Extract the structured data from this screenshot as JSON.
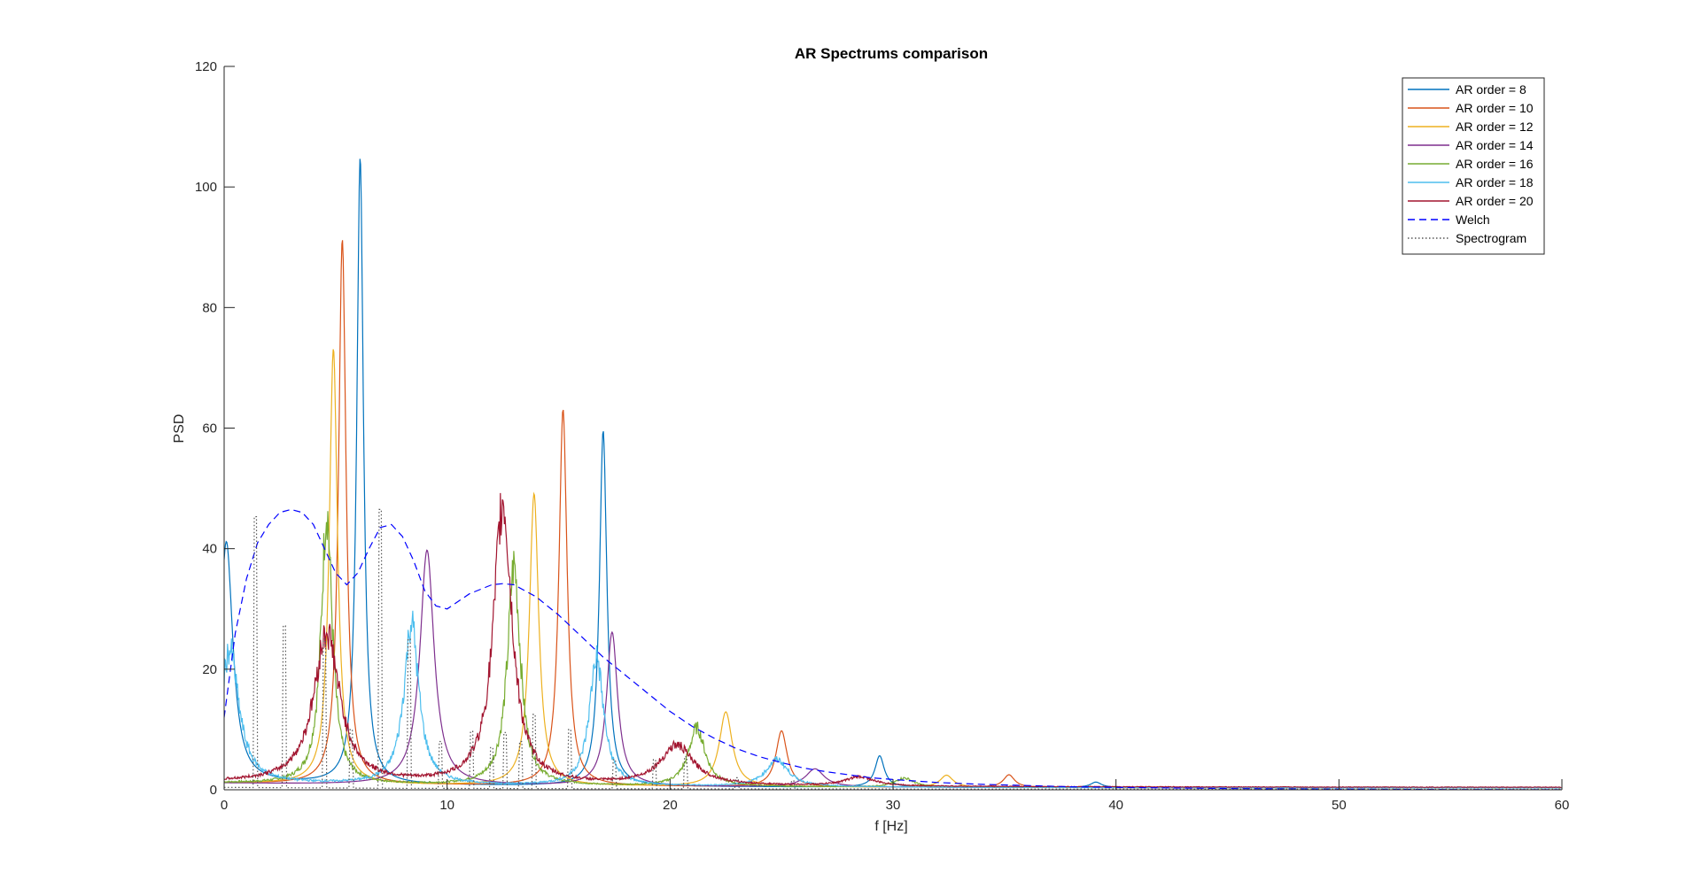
{
  "chart_data": {
    "type": "line",
    "title": "AR Spectrums comparison",
    "xlabel": "f [Hz]",
    "ylabel": "PSD",
    "xlim": [
      0,
      60
    ],
    "ylim": [
      0,
      120
    ],
    "xticks": [
      0,
      10,
      20,
      30,
      40,
      50,
      60
    ],
    "yticks": [
      0,
      20,
      40,
      60,
      80,
      100,
      120
    ],
    "grid": false,
    "legend_position": "top-right",
    "series": [
      {
        "name": "AR order = 8",
        "color": "#0072bd",
        "style": "solid",
        "baseline": 0.3,
        "peaks": [
          [
            0.1,
            40,
            0.35
          ],
          [
            6.1,
            104,
            0.18
          ],
          [
            17.0,
            59,
            0.2
          ],
          [
            29.4,
            5.2,
            0.25
          ],
          [
            39.1,
            0.9,
            0.3
          ]
        ]
      },
      {
        "name": "AR order = 10",
        "color": "#d95319",
        "style": "solid",
        "baseline": 0.3,
        "peaks": [
          [
            5.3,
            90.5,
            0.2
          ],
          [
            15.2,
            62.5,
            0.22
          ],
          [
            25.0,
            9.3,
            0.3
          ],
          [
            35.2,
            2.1,
            0.3
          ]
        ]
      },
      {
        "name": "AR order = 12",
        "color": "#edb120",
        "style": "solid",
        "baseline": 0.3,
        "peaks": [
          [
            4.9,
            72.3,
            0.22
          ],
          [
            13.9,
            48.5,
            0.25
          ],
          [
            22.5,
            12.4,
            0.35
          ],
          [
            32.4,
            2.0,
            0.35
          ]
        ]
      },
      {
        "name": "AR order = 14",
        "color": "#7e2f8e",
        "style": "solid",
        "baseline": 0.3,
        "peaks": [
          [
            9.1,
            39,
            0.38
          ],
          [
            17.4,
            25.5,
            0.3
          ],
          [
            26.5,
            3.0,
            0.5
          ]
        ]
      },
      {
        "name": "AR order = 16",
        "color": "#77ac30",
        "style": "solid",
        "baseline": 0.3,
        "peaks": [
          [
            4.6,
            45.5,
            0.3
          ],
          [
            13.0,
            36.5,
            0.35
          ],
          [
            21.2,
            9.7,
            0.45
          ],
          [
            30.5,
            1.5,
            0.5
          ]
        ]
      },
      {
        "name": "AR order = 18",
        "color": "#4dbeee",
        "style": "solid",
        "baseline": 0.3,
        "peaks": [
          [
            0.25,
            22,
            0.5
          ],
          [
            8.4,
            27,
            0.4
          ],
          [
            16.7,
            21.5,
            0.38
          ],
          [
            24.8,
            4.5,
            0.6
          ]
        ]
      },
      {
        "name": "AR order = 20",
        "color": "#a2142f",
        "style": "solid",
        "baseline": 0.4,
        "peaks": [
          [
            4.6,
            25,
            0.7
          ],
          [
            12.5,
            46.3,
            0.5
          ],
          [
            20.3,
            6.6,
            0.9
          ],
          [
            28.5,
            1.5,
            0.8
          ]
        ]
      },
      {
        "name": "Welch",
        "color": "#0000ff",
        "style": "dashed",
        "x": [
          0,
          0.5,
          1,
          1.5,
          2,
          2.5,
          3,
          3.5,
          4,
          4.5,
          5,
          5.5,
          6,
          6.5,
          7,
          7.5,
          8,
          8.5,
          9,
          9.5,
          10,
          11,
          12,
          12.5,
          13,
          14,
          15,
          16,
          17,
          18,
          19,
          20,
          21,
          22,
          23,
          24,
          25,
          26,
          27,
          28,
          29,
          30,
          32,
          34,
          36,
          38,
          40,
          45,
          50,
          55,
          60
        ],
        "y": [
          12,
          26,
          35,
          41,
          44,
          46,
          46.5,
          46,
          44,
          40,
          36,
          34,
          36,
          40,
          43.5,
          44,
          42,
          38,
          33,
          30.5,
          30,
          32.5,
          34,
          34.2,
          34,
          32,
          29,
          25.5,
          22,
          19,
          16,
          13,
          10.5,
          8.5,
          6.8,
          5.5,
          4.5,
          3.6,
          3.0,
          2.5,
          2.0,
          1.7,
          1.2,
          0.9,
          0.7,
          0.5,
          0.4,
          0.2,
          0.1,
          0.05,
          0.02
        ]
      },
      {
        "name": "Spectrogram",
        "color": "#555555",
        "style": "dotted",
        "baseline": 0.1,
        "spikes": [
          [
            1.4,
            45.3
          ],
          [
            2.7,
            27.2
          ],
          [
            4.5,
            25
          ],
          [
            7.0,
            46.5
          ],
          [
            8.3,
            25
          ],
          [
            5.7,
            10
          ],
          [
            9.7,
            8
          ],
          [
            11.1,
            9.7
          ],
          [
            12.0,
            7
          ],
          [
            12.6,
            9.5
          ],
          [
            13.3,
            8
          ],
          [
            13.9,
            12.5
          ],
          [
            15.5,
            10
          ],
          [
            17.5,
            5
          ],
          [
            19.3,
            5
          ],
          [
            20.7,
            5.5
          ],
          [
            23.0,
            2
          ],
          [
            25.5,
            1.5
          ]
        ]
      }
    ]
  }
}
